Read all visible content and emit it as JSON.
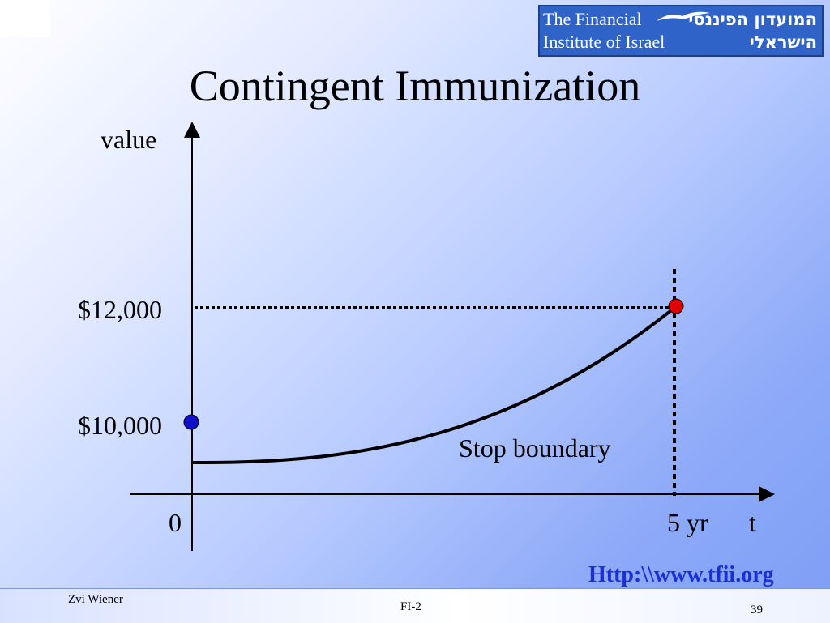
{
  "slide": {
    "title": "Contingent Immunization",
    "url": "Http:\\\\www.tfii.org",
    "logo": {
      "english_line1": "The Financial",
      "english_line2": "Institute of Israel",
      "hebrew_line1": "המועדון הפיננסי",
      "hebrew_line2": "הישראלי"
    },
    "footer": {
      "author": "Zvi Wiener",
      "course": "FI-2",
      "page_number": "39"
    }
  },
  "diagram": {
    "y_axis_label": "value",
    "x_axis_label": "t",
    "origin_label": "0",
    "x_end_label": "5 yr",
    "upper_value_label": "$12,000",
    "lower_value_label": "$10,000",
    "curve_label": "Stop boundary",
    "colors": {
      "start_point": "#1010c8",
      "end_point": "#e00000",
      "url": "#1a2fd6"
    }
  }
}
